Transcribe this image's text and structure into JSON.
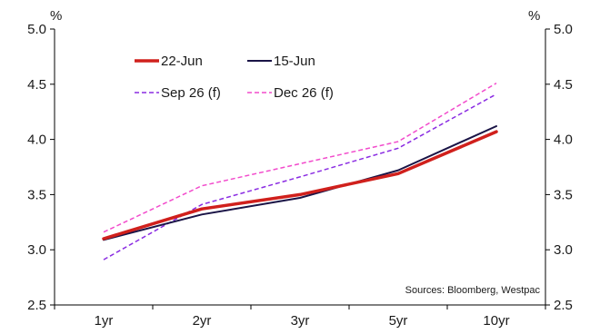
{
  "chart_data": {
    "type": "line",
    "title": "",
    "categories": [
      "1yr",
      "2yr",
      "3yr",
      "5yr",
      "10yr"
    ],
    "y_unit_left": "%",
    "y_unit_right": "%",
    "ylim": [
      2.5,
      5.0
    ],
    "yticks": [
      "2.5",
      "3.0",
      "3.5",
      "4.0",
      "4.5",
      "5.0"
    ],
    "ytick_values": [
      2.5,
      3.0,
      3.5,
      4.0,
      4.5,
      5.0
    ],
    "grid": false,
    "legend_position": "top-left",
    "series": [
      {
        "name": "22-Jun",
        "values": [
          3.1,
          3.37,
          3.5,
          3.69,
          4.07
        ],
        "color": "#d0201c",
        "style": "solid",
        "width": 3.5
      },
      {
        "name": "15-Jun",
        "values": [
          3.09,
          3.32,
          3.47,
          3.72,
          4.12
        ],
        "color": "#1a1446",
        "style": "solid",
        "width": 2
      },
      {
        "name": "Sep 26 (f)",
        "values": [
          2.91,
          3.41,
          3.66,
          3.92,
          4.41
        ],
        "color": "#8a2be2",
        "style": "dashed",
        "width": 1.5
      },
      {
        "name": "Dec 26 (f)",
        "values": [
          3.16,
          3.58,
          3.78,
          3.98,
          4.51
        ],
        "color": "#f24bcc",
        "style": "dashed",
        "width": 1.5
      }
    ],
    "source": "Sources: Bloomberg, Westpac"
  }
}
